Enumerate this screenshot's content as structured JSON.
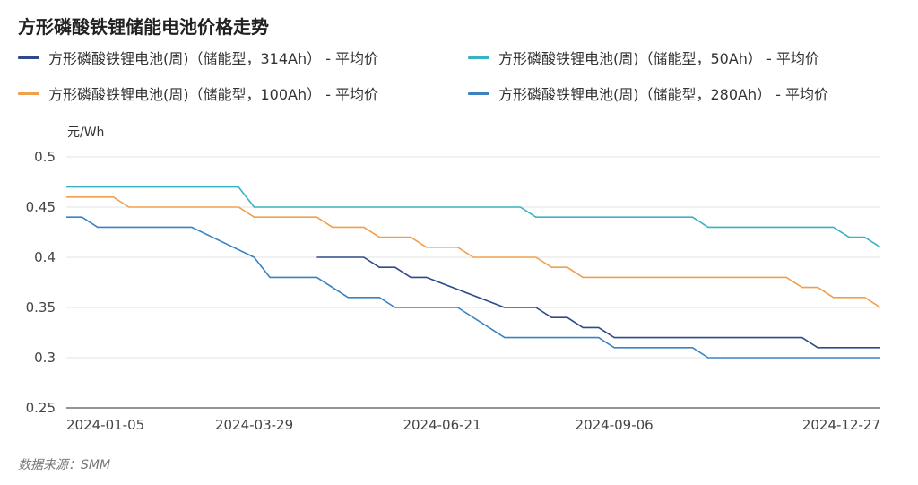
{
  "chart_data": {
    "type": "line",
    "title": "方形磷酸铁锂储能电池价格走势",
    "yunit": "元/Wh",
    "source": "数据来源：SMM",
    "ylim": [
      0.25,
      0.5
    ],
    "yticks": [
      "0.5",
      "0.45",
      "0.4",
      "0.35",
      "0.3",
      "0.25"
    ],
    "xrange": [
      "2024-01-05",
      "2025-01-03"
    ],
    "xticks": [
      "2024-01-05",
      "2024-03-29",
      "2024-06-21",
      "2024-09-06",
      "2024-12-27"
    ],
    "grid": true,
    "legend_position": "top",
    "series": [
      {
        "name": "方形磷酸铁锂电池(周)（储能型，314Ah） - 平均价",
        "color": "#2e4a8a",
        "points": [
          [
            "2024-04-26",
            0.4
          ],
          [
            "2024-05-17",
            0.4
          ],
          [
            "2024-05-24",
            0.39
          ],
          [
            "2024-05-31",
            0.39
          ],
          [
            "2024-06-07",
            0.38
          ],
          [
            "2024-06-14",
            0.38
          ],
          [
            "2024-07-19",
            0.35
          ],
          [
            "2024-07-26",
            0.35
          ],
          [
            "2024-08-02",
            0.35
          ],
          [
            "2024-08-09",
            0.34
          ],
          [
            "2024-08-16",
            0.34
          ],
          [
            "2024-08-23",
            0.33
          ],
          [
            "2024-08-30",
            0.33
          ],
          [
            "2024-09-06",
            0.32
          ],
          [
            "2024-11-29",
            0.32
          ],
          [
            "2024-12-06",
            0.31
          ],
          [
            "2025-01-03",
            0.31
          ]
        ]
      },
      {
        "name": "方形磷酸铁锂电池(周)（储能型，50Ah） - 平均价",
        "color": "#37b3c2",
        "points": [
          [
            "2024-01-05",
            0.47
          ],
          [
            "2024-03-22",
            0.47
          ],
          [
            "2024-03-29",
            0.45
          ],
          [
            "2024-07-26",
            0.45
          ],
          [
            "2024-08-02",
            0.44
          ],
          [
            "2024-10-11",
            0.44
          ],
          [
            "2024-10-18",
            0.43
          ],
          [
            "2024-12-13",
            0.43
          ],
          [
            "2024-12-20",
            0.42
          ],
          [
            "2024-12-27",
            0.42
          ],
          [
            "2025-01-03",
            0.41
          ]
        ]
      },
      {
        "name": "方形磷酸铁锂电池(周)（储能型，100Ah） - 平均价",
        "color": "#f0a04b",
        "points": [
          [
            "2024-01-05",
            0.46
          ],
          [
            "2024-01-26",
            0.46
          ],
          [
            "2024-02-02",
            0.45
          ],
          [
            "2024-03-22",
            0.45
          ],
          [
            "2024-03-29",
            0.44
          ],
          [
            "2024-04-26",
            0.44
          ],
          [
            "2024-05-03",
            0.43
          ],
          [
            "2024-05-17",
            0.43
          ],
          [
            "2024-05-24",
            0.42
          ],
          [
            "2024-06-07",
            0.42
          ],
          [
            "2024-06-14",
            0.41
          ],
          [
            "2024-06-28",
            0.41
          ],
          [
            "2024-07-05",
            0.4
          ],
          [
            "2024-08-02",
            0.4
          ],
          [
            "2024-08-09",
            0.39
          ],
          [
            "2024-08-16",
            0.39
          ],
          [
            "2024-08-23",
            0.38
          ],
          [
            "2024-11-22",
            0.38
          ],
          [
            "2024-11-29",
            0.37
          ],
          [
            "2024-12-06",
            0.37
          ],
          [
            "2024-12-13",
            0.36
          ],
          [
            "2024-12-27",
            0.36
          ],
          [
            "2025-01-03",
            0.35
          ]
        ]
      },
      {
        "name": "方形磷酸铁锂电池(周)（储能型，280Ah） - 平均价",
        "color": "#3a82c4",
        "points": [
          [
            "2024-01-05",
            0.44
          ],
          [
            "2024-01-12",
            0.44
          ],
          [
            "2024-01-19",
            0.43
          ],
          [
            "2024-03-01",
            0.43
          ],
          [
            "2024-03-29",
            0.4
          ],
          [
            "2024-04-05",
            0.38
          ],
          [
            "2024-04-26",
            0.38
          ],
          [
            "2024-05-10",
            0.36
          ],
          [
            "2024-05-24",
            0.36
          ],
          [
            "2024-05-31",
            0.35
          ],
          [
            "2024-06-28",
            0.35
          ],
          [
            "2024-07-19",
            0.32
          ],
          [
            "2024-08-30",
            0.32
          ],
          [
            "2024-09-06",
            0.31
          ],
          [
            "2024-10-11",
            0.31
          ],
          [
            "2024-10-18",
            0.3
          ],
          [
            "2025-01-03",
            0.3
          ]
        ]
      }
    ]
  }
}
